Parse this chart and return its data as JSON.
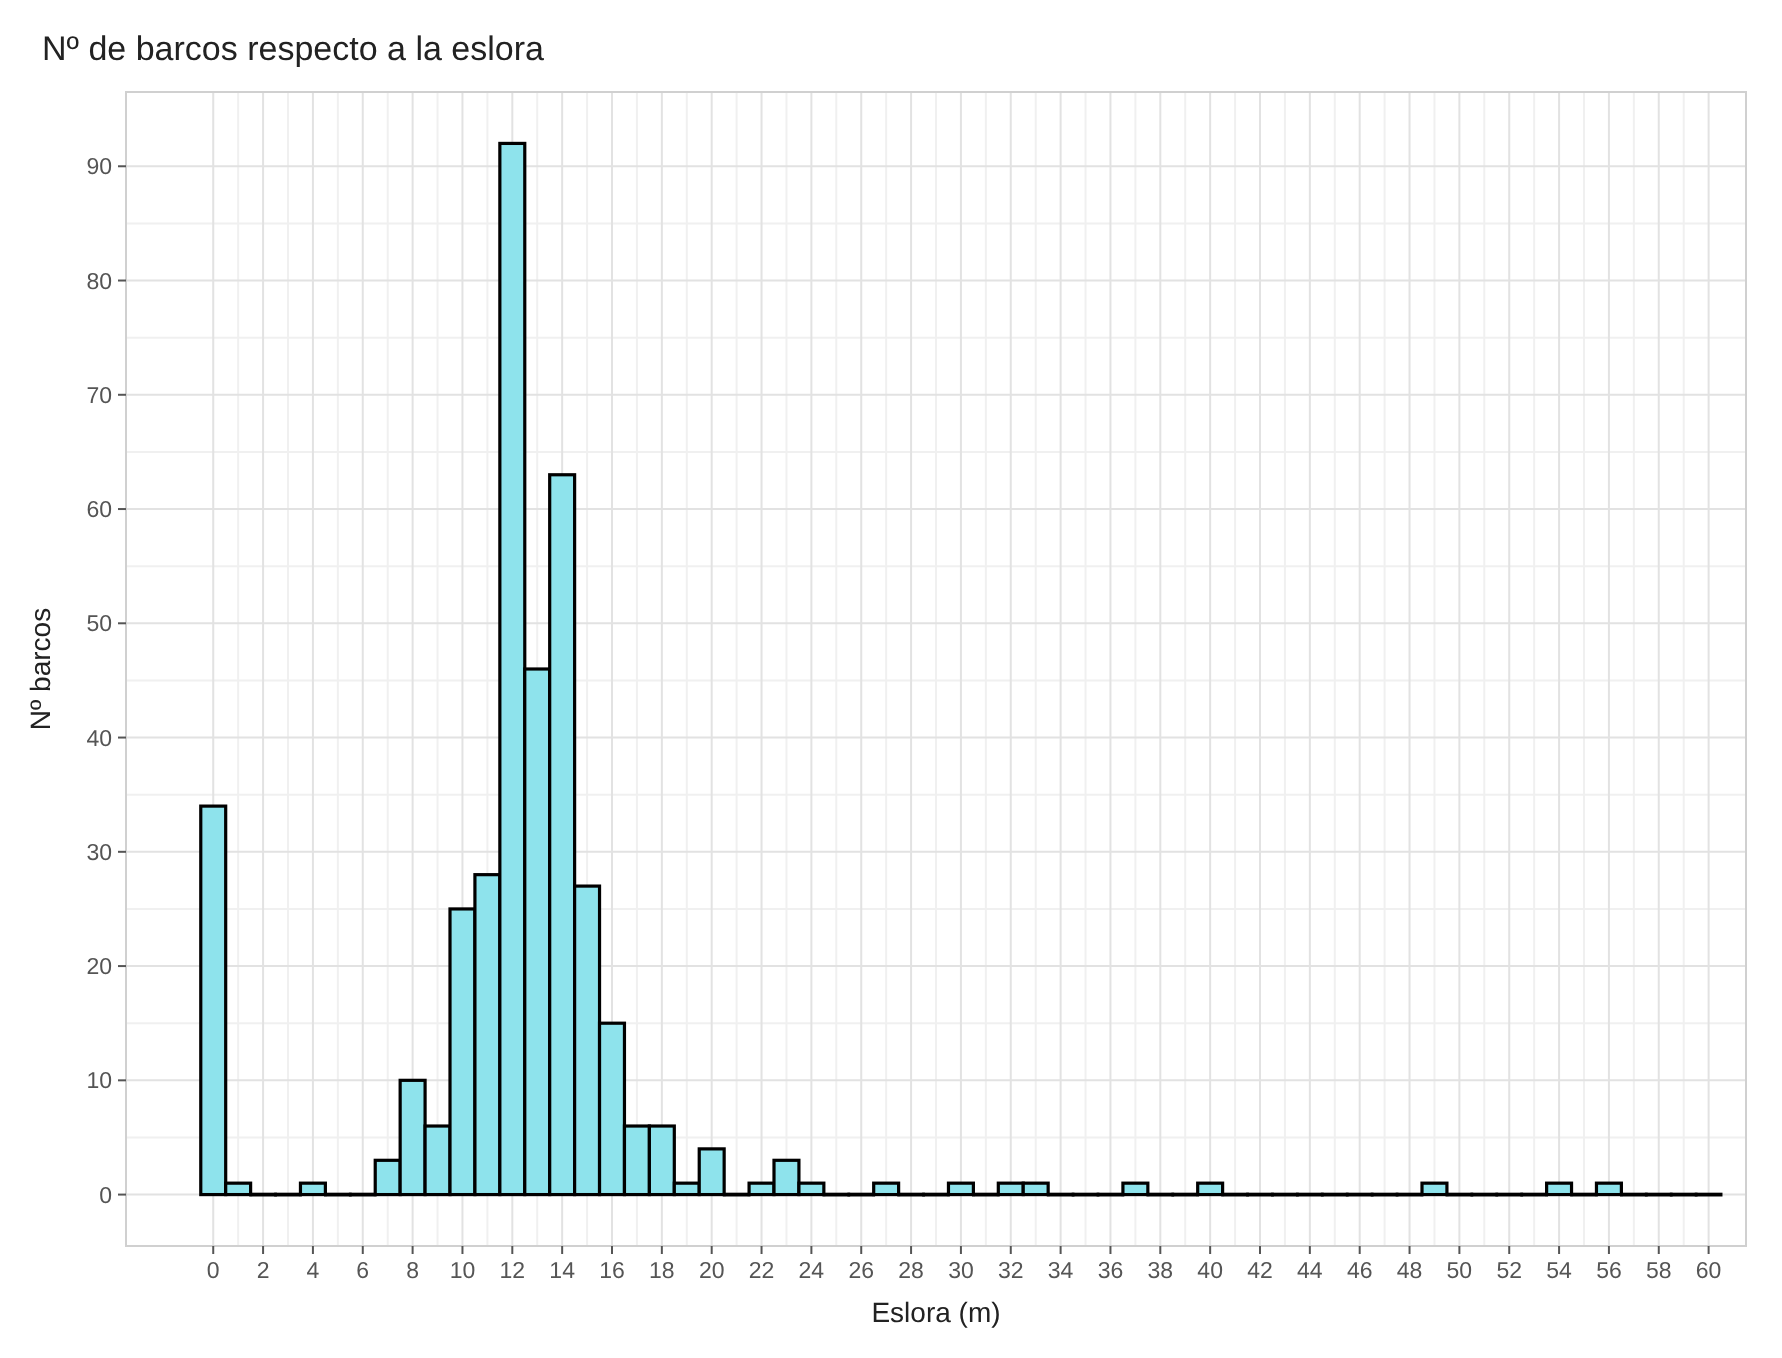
{
  "chart_data": {
    "type": "histogram",
    "title": "Nº de barcos respecto a la eslora",
    "xlabel": "Eslora (m)",
    "ylabel": "Nº barcos",
    "bins": [
      -0.5,
      0.5,
      1.5,
      2.5,
      3.5,
      4.5,
      5.5,
      6.5,
      7.5,
      8.5,
      9.5,
      10.5,
      11.5,
      12.5,
      13.5,
      14.5,
      15.5,
      16.5,
      17.5,
      18.5,
      19.5,
      20.5,
      21.5,
      22.5,
      23.5,
      24.5,
      25.5,
      26.5,
      27.5,
      28.5,
      29.5,
      30.5,
      31.5,
      32.5,
      33.5,
      34.5,
      35.5,
      36.5,
      37.5,
      38.5,
      39.5,
      40.5,
      41.5,
      42.5,
      43.5,
      44.5,
      45.5,
      46.5,
      47.5,
      48.5,
      49.5,
      50.5,
      51.5,
      52.5,
      53.5,
      54.5,
      55.5,
      56.5,
      57.5,
      58.5,
      59.5,
      60.5
    ],
    "values": [
      34,
      1,
      0,
      0,
      1,
      0,
      0,
      3,
      10,
      6,
      25,
      28,
      92,
      46,
      63,
      27,
      15,
      6,
      6,
      1,
      4,
      0,
      1,
      3,
      1,
      0,
      0,
      1,
      0,
      0,
      1,
      0,
      1,
      1,
      0,
      0,
      0,
      1,
      0,
      0,
      1,
      0,
      0,
      0,
      0,
      0,
      0,
      0,
      0,
      1,
      0,
      0,
      0,
      0,
      1,
      0,
      1,
      0,
      0,
      0,
      0
    ],
    "color": "#8ee3ec",
    "xlim": [
      -3.5,
      61.5
    ],
    "xticks": [
      0,
      2,
      4,
      6,
      8,
      10,
      12,
      14,
      16,
      18,
      20,
      22,
      24,
      26,
      28,
      30,
      32,
      34,
      36,
      38,
      40,
      42,
      44,
      46,
      48,
      50,
      52,
      54,
      56,
      58,
      60
    ],
    "ylim": [
      -4.5,
      96.5
    ],
    "yticks": [
      0,
      10,
      20,
      30,
      40,
      50,
      60,
      70,
      80,
      90
    ],
    "grid": true
  }
}
